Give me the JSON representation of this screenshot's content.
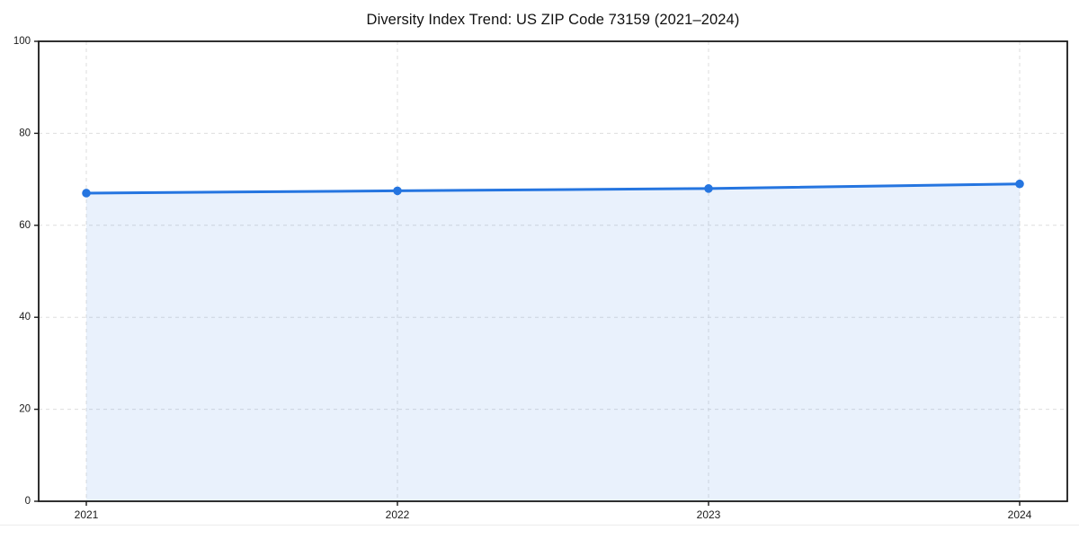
{
  "chart_data": {
    "type": "area",
    "title": "Diversity Index Trend: US ZIP Code 73159 (2021–2024)",
    "categories": [
      "2021",
      "2022",
      "2023",
      "2024"
    ],
    "series": [
      {
        "name": "Diversity Index",
        "values": [
          67.0,
          67.5,
          68.0,
          69.0
        ]
      }
    ],
    "xlabel": "",
    "ylabel": "",
    "ylim": [
      0,
      100
    ],
    "yticks": [
      0,
      20,
      40,
      60,
      80,
      100
    ],
    "grid": true,
    "grid_style": "dashed",
    "legend_position": "none",
    "marker": "circle",
    "colors": {
      "line": "#2575e0",
      "marker": "#2575e0",
      "fill": "#2575e0",
      "fill_opacity": 0.1,
      "grid": "#dedede",
      "spine": "#1a1a1a",
      "text": "#1a1a1a",
      "background": "#ffffff"
    }
  }
}
